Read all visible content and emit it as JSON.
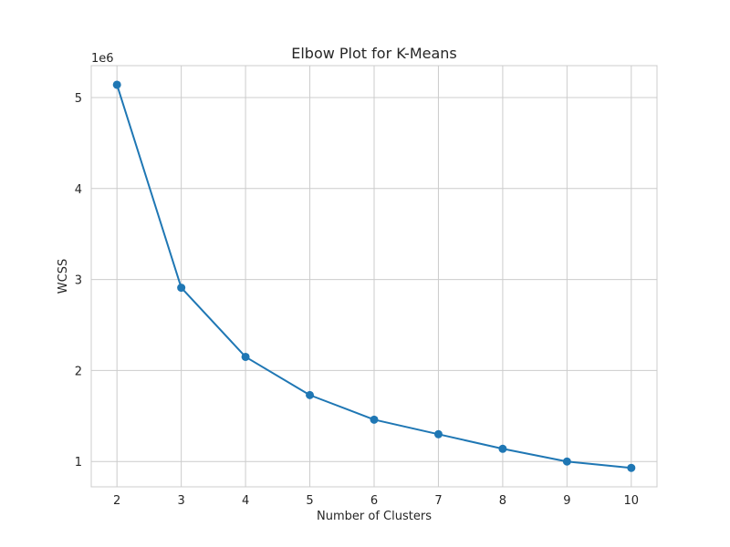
{
  "chart_data": {
    "type": "line",
    "title": "Elbow Plot for K-Means",
    "xlabel": "Number of Clusters",
    "ylabel": "WCSS",
    "y_offset_label": "1e6",
    "x": [
      2,
      3,
      4,
      5,
      6,
      7,
      8,
      9,
      10
    ],
    "series": [
      {
        "values": [
          5140000,
          2910000,
          2150000,
          1730000,
          1460000,
          1300000,
          1140000,
          1000000,
          930000
        ]
      }
    ],
    "xlim": [
      1.6,
      10.4
    ],
    "ylim": [
      722000,
      5350000
    ],
    "x_ticks": [
      2,
      3,
      4,
      5,
      6,
      7,
      8,
      9,
      10
    ],
    "y_ticks": [
      1000000,
      2000000,
      3000000,
      4000000,
      5000000
    ],
    "y_tick_labels": [
      "1",
      "2",
      "3",
      "4",
      "5"
    ],
    "grid": true,
    "line_color": "#1f77b4",
    "marker": "circle"
  }
}
